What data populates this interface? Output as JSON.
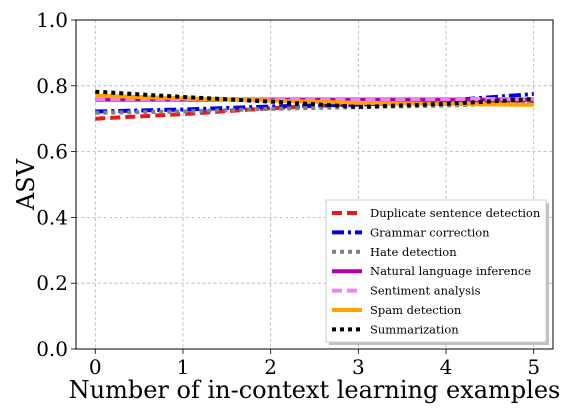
{
  "chart_data": {
    "type": "line",
    "xlabel": "Number of in-context learning examples",
    "ylabel": "ASV",
    "x": [
      0,
      1,
      2,
      3,
      4,
      5
    ],
    "xticks": [
      0,
      1,
      2,
      3,
      4,
      5
    ],
    "yticks": [
      0.0,
      0.2,
      0.4,
      0.6,
      0.8,
      1.0
    ],
    "ytick_labels": [
      "0.0",
      "0.2",
      "0.4",
      "0.6",
      "0.8",
      "1.0"
    ],
    "xlim": [
      -0.22,
      5.22
    ],
    "ylim": [
      0.0,
      1.0
    ],
    "grid": true,
    "legend_position": "lower-right",
    "series": [
      {
        "name": "Duplicate sentence detection",
        "color": "#e41a1c",
        "dash": "dashed",
        "values": [
          0.7,
          0.714,
          0.732,
          0.745,
          0.748,
          0.752
        ]
      },
      {
        "name": "Grammar correction",
        "color": "#0000ee",
        "dash": "dashdot",
        "values": [
          0.722,
          0.728,
          0.737,
          0.743,
          0.755,
          0.775
        ]
      },
      {
        "name": "Hate detection",
        "color": "#808080",
        "dash": "dotted",
        "values": [
          0.718,
          0.722,
          0.73,
          0.735,
          0.74,
          0.748
        ]
      },
      {
        "name": "Natural language inference",
        "color": "#b000b0",
        "dash": "solid",
        "values": [
          0.758,
          0.758,
          0.758,
          0.758,
          0.758,
          0.758
        ]
      },
      {
        "name": "Sentiment analysis",
        "color": "#ee82ee",
        "dash": "dashed",
        "values": [
          0.76,
          0.76,
          0.76,
          0.76,
          0.76,
          0.76
        ]
      },
      {
        "name": "Spam detection",
        "color": "#ffa500",
        "dash": "solid",
        "values": [
          0.77,
          0.762,
          0.755,
          0.748,
          0.745,
          0.742
        ]
      },
      {
        "name": "Summarization",
        "color": "#000000",
        "dash": "dotted",
        "values": [
          0.782,
          0.766,
          0.752,
          0.736,
          0.745,
          0.76
        ]
      }
    ]
  }
}
